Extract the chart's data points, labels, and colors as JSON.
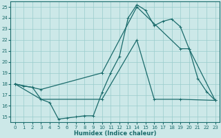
{
  "title": "",
  "xlabel": "Humidex (Indice chaleur)",
  "bg_color": "#cce8e8",
  "line_color": "#1a6b6b",
  "grid_color": "#99cccc",
  "xlim": [
    -0.5,
    23.5
  ],
  "ylim": [
    14.5,
    25.5
  ],
  "yticks": [
    15,
    16,
    17,
    18,
    19,
    20,
    21,
    22,
    23,
    24,
    25
  ],
  "xticks": [
    0,
    1,
    2,
    3,
    4,
    5,
    6,
    7,
    8,
    9,
    10,
    11,
    12,
    13,
    14,
    15,
    16,
    17,
    18,
    19,
    20,
    21,
    22,
    23
  ],
  "line1_x": [
    0,
    1,
    2,
    3,
    4,
    5,
    6,
    7,
    8,
    9,
    10,
    11,
    12,
    13,
    14,
    15,
    16,
    17,
    18,
    19,
    20,
    21,
    22,
    23
  ],
  "line1_y": [
    18.0,
    17.8,
    17.7,
    16.6,
    16.3,
    14.8,
    14.9,
    15.0,
    15.1,
    15.1,
    17.2,
    19.0,
    20.5,
    24.0,
    25.2,
    24.7,
    23.3,
    23.7,
    23.9,
    23.2,
    21.2,
    18.5,
    17.3,
    16.5
  ],
  "line2_x": [
    0,
    3,
    10,
    14,
    19,
    20,
    23
  ],
  "line2_y": [
    18.0,
    17.5,
    19.0,
    25.0,
    21.2,
    21.2,
    16.5
  ],
  "line3_x": [
    0,
    3,
    10,
    14,
    16,
    19,
    23
  ],
  "line3_y": [
    18.0,
    16.6,
    16.6,
    22.0,
    16.6,
    16.6,
    16.5
  ],
  "marker_size": 3,
  "linewidth": 0.9
}
